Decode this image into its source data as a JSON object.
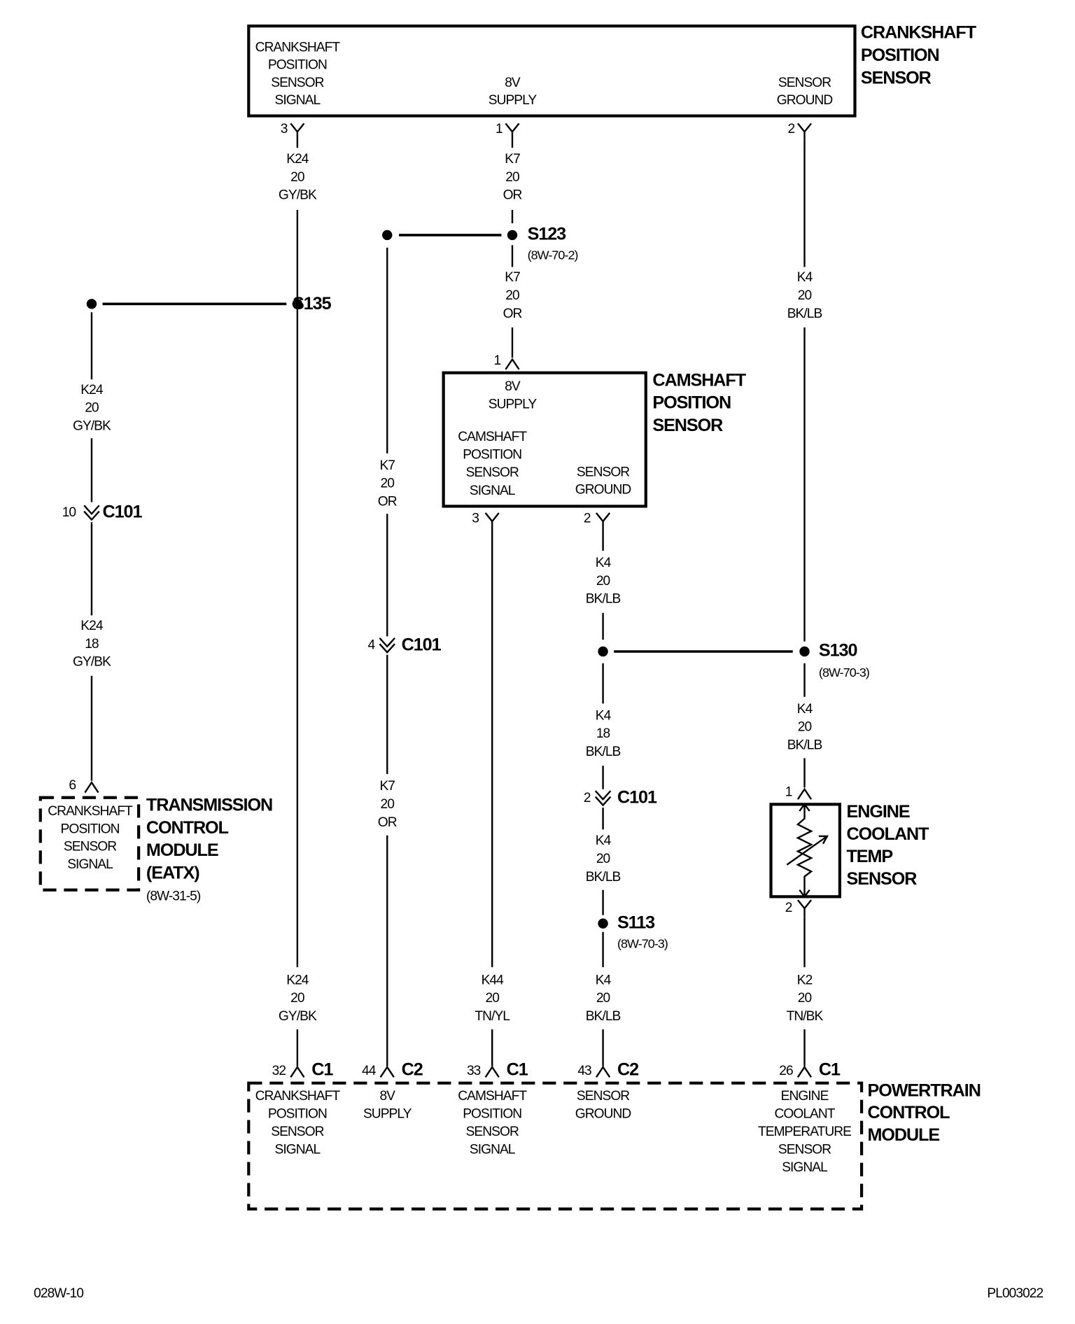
{
  "crank_sensor": {
    "title": [
      "CRANKSHAFT",
      "POSITION",
      "SENSOR"
    ],
    "signal": {
      "label": [
        "CRANKSHAFT",
        "POSITION",
        "SENSOR",
        "SIGNAL"
      ],
      "pin": "3"
    },
    "supply": {
      "label": [
        "8V",
        "SUPPLY"
      ],
      "pin": "1"
    },
    "ground": {
      "label": [
        "SENSOR",
        "GROUND"
      ],
      "pin": "2"
    }
  },
  "cam_sensor": {
    "title": [
      "CAMSHAFT",
      "POSITION",
      "SENSOR"
    ],
    "supply": {
      "label": [
        "8V",
        "SUPPLY"
      ],
      "pin": "1"
    },
    "signal": {
      "label": [
        "CAMSHAFT",
        "POSITION",
        "SENSOR",
        "SIGNAL"
      ],
      "pin": "3"
    },
    "ground": {
      "label": [
        "SENSOR",
        "GROUND"
      ],
      "pin": "2"
    }
  },
  "tcm": {
    "title": [
      "TRANSMISSION",
      "CONTROL",
      "MODULE",
      "(EATX)"
    ],
    "ref": "(8W-31-5)",
    "signal": {
      "label": [
        "CRANKSHAFT",
        "POSITION",
        "SENSOR",
        "SIGNAL"
      ],
      "pin": "6"
    }
  },
  "ect_sensor": {
    "title": [
      "ENGINE",
      "COOLANT",
      "TEMP",
      "SENSOR"
    ],
    "pin_top": "1",
    "pin_bottom": "2"
  },
  "pcm": {
    "title": [
      "POWERTRAIN",
      "CONTROL",
      "MODULE"
    ],
    "pins": [
      {
        "pin": "32",
        "connector": "C1",
        "label": [
          "CRANKSHAFT",
          "POSITION",
          "SENSOR",
          "SIGNAL"
        ]
      },
      {
        "pin": "44",
        "connector": "C2",
        "label": [
          "8V",
          "SUPPLY"
        ]
      },
      {
        "pin": "33",
        "connector": "C1",
        "label": [
          "CAMSHAFT",
          "POSITION",
          "SENSOR",
          "SIGNAL"
        ]
      },
      {
        "pin": "43",
        "connector": "C2",
        "label": [
          "SENSOR",
          "GROUND"
        ]
      },
      {
        "pin": "26",
        "connector": "C1",
        "label": [
          "ENGINE",
          "COOLANT",
          "TEMPERATURE",
          "SENSOR",
          "SIGNAL"
        ]
      }
    ]
  },
  "splices": [
    {
      "id": "S123",
      "ref": "(8W-70-2)"
    },
    {
      "id": "S135"
    },
    {
      "id": "S130",
      "ref": "(8W-70-3)"
    },
    {
      "id": "S113",
      "ref": "(8W-70-3)"
    }
  ],
  "inline_connectors": [
    {
      "id": "C101",
      "pin": "10"
    },
    {
      "id": "C101",
      "pin": "4"
    },
    {
      "id": "C101",
      "pin": "2"
    }
  ],
  "wires": [
    {
      "circuit": "K24",
      "gauge": "20",
      "color": "GY/BK"
    },
    {
      "circuit": "K7",
      "gauge": "20",
      "color": "OR"
    },
    {
      "circuit": "K7",
      "gauge": "20",
      "color": "OR"
    },
    {
      "circuit": "K4",
      "gauge": "20",
      "color": "BK/LB"
    },
    {
      "circuit": "K24",
      "gauge": "20",
      "color": "GY/BK"
    },
    {
      "circuit": "K24",
      "gauge": "18",
      "color": "GY/BK"
    },
    {
      "circuit": "K7",
      "gauge": "20",
      "color": "OR"
    },
    {
      "circuit": "K7",
      "gauge": "20",
      "color": "OR"
    },
    {
      "circuit": "K4",
      "gauge": "20",
      "color": "BK/LB"
    },
    {
      "circuit": "K4",
      "gauge": "18",
      "color": "BK/LB"
    },
    {
      "circuit": "K4",
      "gauge": "20",
      "color": "BK/LB"
    },
    {
      "circuit": "K4",
      "gauge": "20",
      "color": "BK/LB"
    },
    {
      "circuit": "K24",
      "gauge": "20",
      "color": "GY/BK"
    },
    {
      "circuit": "K44",
      "gauge": "20",
      "color": "TN/YL"
    },
    {
      "circuit": "K4",
      "gauge": "20",
      "color": "BK/LB"
    },
    {
      "circuit": "K2",
      "gauge": "20",
      "color": "TN/BK"
    }
  ],
  "footer": {
    "left": "028W-10",
    "right": "PL003022"
  }
}
